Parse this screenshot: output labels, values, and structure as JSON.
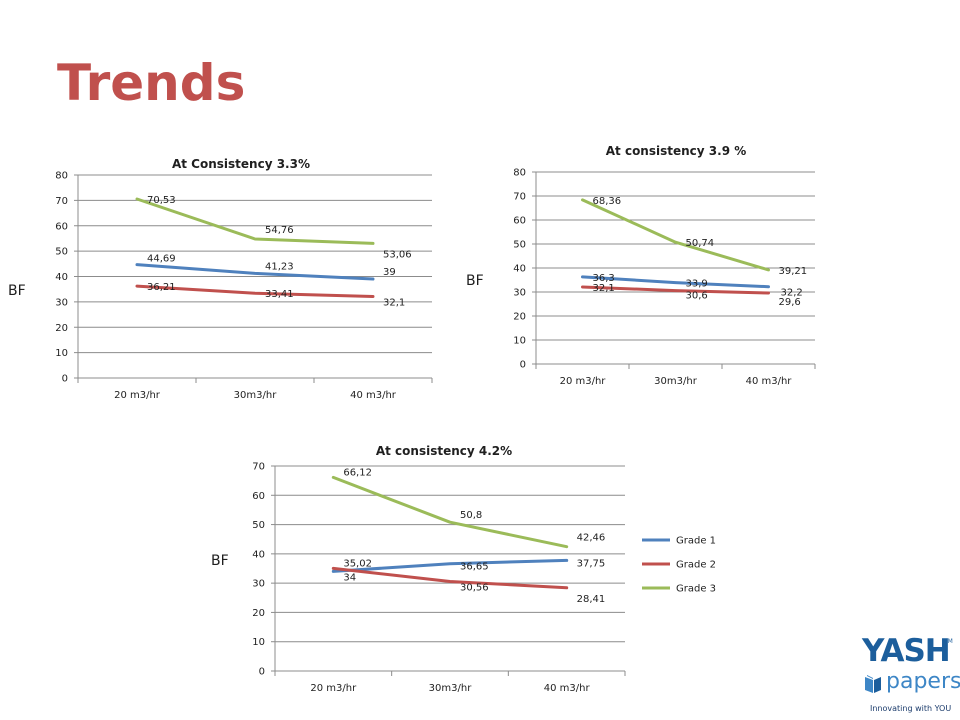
{
  "slide": {
    "title": "Trends"
  },
  "logo": {
    "brand": "YASH",
    "trademark": "TM",
    "product": "papers",
    "tagline": "Innovating with YOU"
  },
  "colors": {
    "title": "#c0504d",
    "grade1": "#4f81bd",
    "grade2": "#c0504d",
    "grade3": "#9bbb59"
  },
  "chart_data": [
    {
      "type": "line",
      "title": "At Consistency 3.3%",
      "ylabel": "BF",
      "categories": [
        "20 m3/hr",
        "30m3/hr",
        "40 m3/hr"
      ],
      "ylim": [
        0,
        80
      ],
      "yticks": [
        0,
        10,
        20,
        30,
        40,
        50,
        60,
        70,
        80
      ],
      "grid": true,
      "legend": "none",
      "series": [
        {
          "name": "Grade 1",
          "values": [
            44.69,
            41.23,
            39
          ],
          "labels": [
            "44,69",
            "41,23",
            "39"
          ]
        },
        {
          "name": "Grade 2",
          "values": [
            36.21,
            33.41,
            32.1
          ],
          "labels": [
            "36,21",
            "33,41",
            "32,1"
          ]
        },
        {
          "name": "Grade 3",
          "values": [
            70.53,
            54.76,
            53.06
          ],
          "labels": [
            "70,53",
            "54,76",
            "53,06"
          ]
        }
      ]
    },
    {
      "type": "line",
      "title": "At consistency 3.9 %",
      "ylabel": "BF",
      "categories": [
        "20 m3/hr",
        "30m3/hr",
        "40 m3/hr"
      ],
      "ylim": [
        0,
        80
      ],
      "yticks": [
        0,
        10,
        20,
        30,
        40,
        50,
        60,
        70,
        80
      ],
      "grid": true,
      "legend": "none",
      "series": [
        {
          "name": "Grade 1",
          "values": [
            36.3,
            33.9,
            32.2
          ],
          "labels": [
            "36,3",
            "33,9",
            "32,2"
          ]
        },
        {
          "name": "Grade 2",
          "values": [
            32.1,
            30.6,
            29.6
          ],
          "labels": [
            "32,1",
            "30,6",
            "29,6"
          ]
        },
        {
          "name": "Grade 3",
          "values": [
            68.36,
            50.74,
            39.21
          ],
          "labels": [
            "68,36",
            "50,74",
            "39,21"
          ]
        }
      ]
    },
    {
      "type": "line",
      "title": "At consistency 4.2%",
      "ylabel": "BF",
      "categories": [
        "20 m3/hr",
        "30m3/hr",
        "40 m3/hr"
      ],
      "ylim": [
        0,
        70
      ],
      "yticks": [
        0,
        10,
        20,
        30,
        40,
        50,
        60,
        70
      ],
      "grid": true,
      "legend": "right",
      "series": [
        {
          "name": "Grade 1",
          "values": [
            34,
            36.65,
            37.75
          ],
          "labels": [
            "34",
            "36,65",
            "37,75"
          ]
        },
        {
          "name": "Grade 2",
          "values": [
            35.02,
            30.56,
            28.41
          ],
          "labels": [
            "35,02",
            "30,56",
            "28,41"
          ]
        },
        {
          "name": "Grade 3",
          "values": [
            66.12,
            50.8,
            42.46
          ],
          "labels": [
            "66,12",
            "50,8",
            "42,46"
          ]
        }
      ]
    }
  ]
}
